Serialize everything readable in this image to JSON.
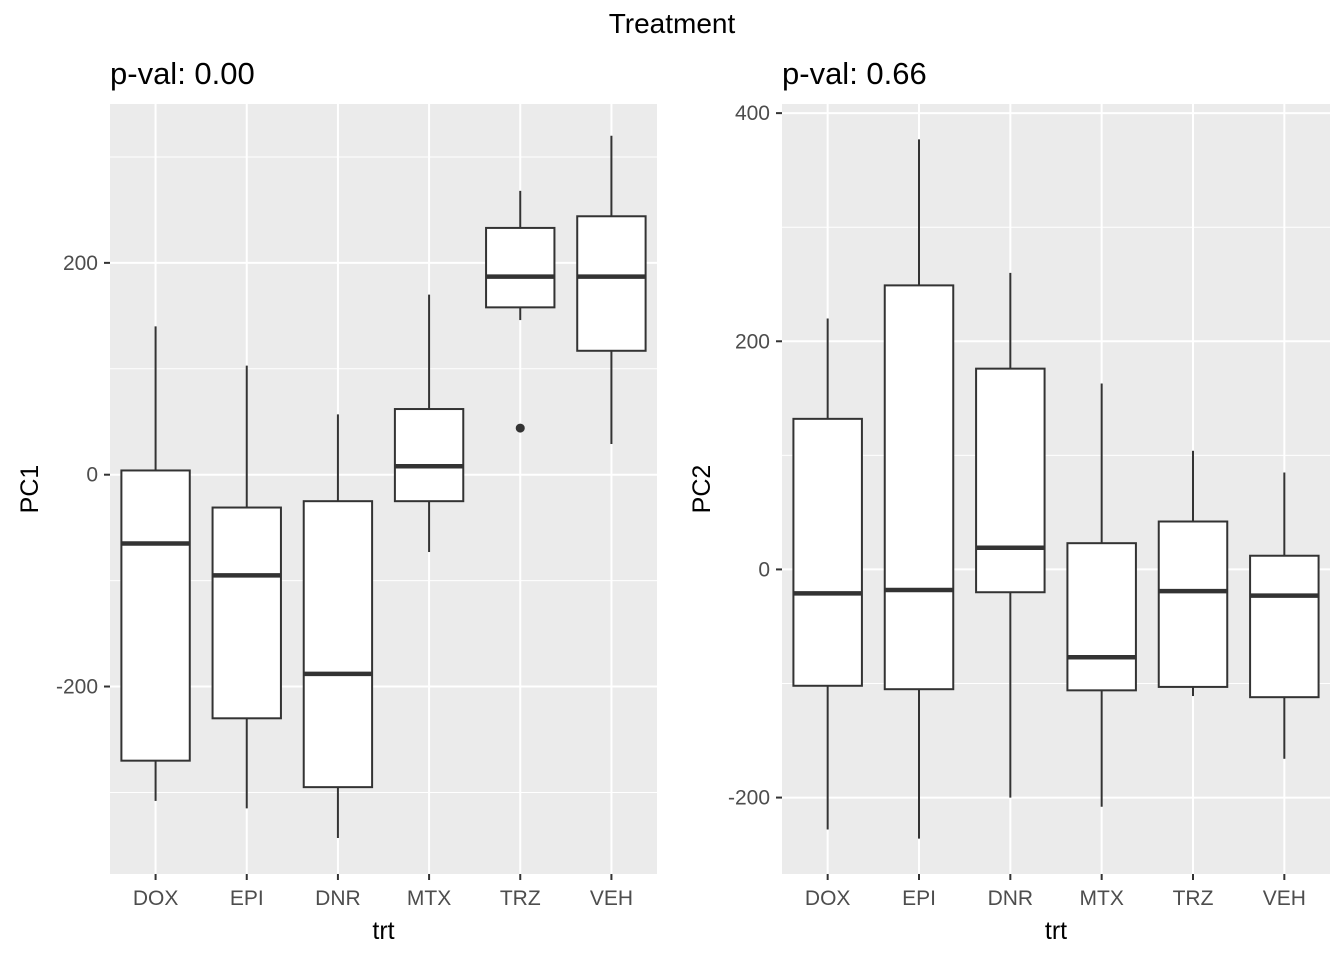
{
  "figure": {
    "title": "Treatment"
  },
  "chart_data": [
    {
      "type": "boxplot",
      "title": "p-val: 0.00",
      "xlabel": "trt",
      "ylabel": "PC1",
      "categories": [
        "DOX",
        "EPI",
        "DNR",
        "MTX",
        "TRZ",
        "VEH"
      ],
      "yticks": [
        -200,
        0,
        200
      ],
      "ylim": [
        -377,
        350
      ],
      "grid": true,
      "boxes": [
        {
          "label": "DOX",
          "whisker_low": -308,
          "q1": -270,
          "median": -65,
          "q3": 4,
          "whisker_high": 140,
          "outliers": []
        },
        {
          "label": "EPI",
          "whisker_low": -315,
          "q1": -230,
          "median": -95,
          "q3": -31,
          "whisker_high": 103,
          "outliers": []
        },
        {
          "label": "DNR",
          "whisker_low": -343,
          "q1": -295,
          "median": -188,
          "q3": -25,
          "whisker_high": 57,
          "outliers": []
        },
        {
          "label": "MTX",
          "whisker_low": -73,
          "q1": -25,
          "median": 8,
          "q3": 62,
          "whisker_high": 170,
          "outliers": []
        },
        {
          "label": "TRZ",
          "whisker_low": 146,
          "q1": 158,
          "median": 187,
          "q3": 233,
          "whisker_high": 268,
          "outliers": [
            44
          ]
        },
        {
          "label": "VEH",
          "whisker_low": 29,
          "q1": 117,
          "median": 187,
          "q3": 244,
          "whisker_high": 320,
          "outliers": []
        }
      ]
    },
    {
      "type": "boxplot",
      "title": "p-val: 0.66",
      "xlabel": "trt",
      "ylabel": "PC2",
      "categories": [
        "DOX",
        "EPI",
        "DNR",
        "MTX",
        "TRZ",
        "VEH"
      ],
      "yticks": [
        -200,
        0,
        200,
        400
      ],
      "ylim": [
        -267,
        408
      ],
      "grid": true,
      "boxes": [
        {
          "label": "DOX",
          "whisker_low": -228,
          "q1": -102,
          "median": -21,
          "q3": 132,
          "whisker_high": 220,
          "outliers": []
        },
        {
          "label": "EPI",
          "whisker_low": -236,
          "q1": -105,
          "median": -18,
          "q3": 249,
          "whisker_high": 377,
          "outliers": []
        },
        {
          "label": "DNR",
          "whisker_low": -200,
          "q1": -20,
          "median": 19,
          "q3": 176,
          "whisker_high": 260,
          "outliers": []
        },
        {
          "label": "MTX",
          "whisker_low": -208,
          "q1": -106,
          "median": -77,
          "q3": 23,
          "whisker_high": 163,
          "outliers": []
        },
        {
          "label": "TRZ",
          "whisker_low": -111,
          "q1": -103,
          "median": -19,
          "q3": 42,
          "whisker_high": 104,
          "outliers": []
        },
        {
          "label": "VEH",
          "whisker_low": -166,
          "q1": -112,
          "median": -23,
          "q3": 12,
          "whisker_high": 85,
          "outliers": []
        }
      ]
    }
  ]
}
